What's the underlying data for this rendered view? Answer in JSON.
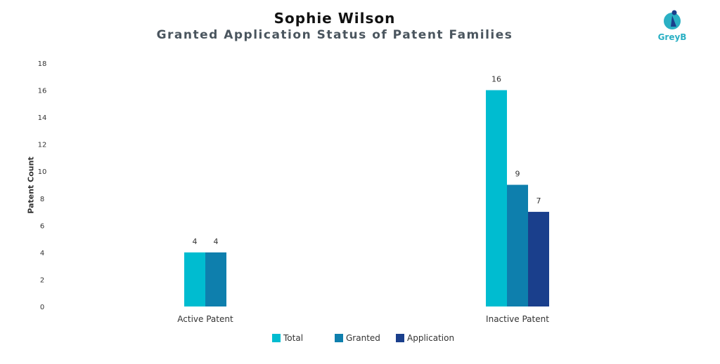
{
  "logo_text": "GreyB",
  "chart_data": {
    "type": "bar",
    "title": "Sophie Wilson",
    "subtitle": "Granted Application Status of Patent Families",
    "xlabel": "",
    "ylabel": "Patent Count",
    "ylim": [
      0,
      18
    ],
    "yticks": [
      0,
      2,
      4,
      6,
      8,
      10,
      12,
      14,
      16,
      18
    ],
    "categories": [
      "Active Patent",
      "Inactive Patent"
    ],
    "series": [
      {
        "name": "Total",
        "color": "#00bcd0",
        "values": [
          4,
          16
        ]
      },
      {
        "name": "Granted",
        "color": "#0e7fad",
        "values": [
          4,
          9
        ]
      },
      {
        "name": "Application",
        "color": "#1a3f8c",
        "values": [
          null,
          7
        ]
      }
    ],
    "grid": false,
    "legend_position": "bottom"
  }
}
